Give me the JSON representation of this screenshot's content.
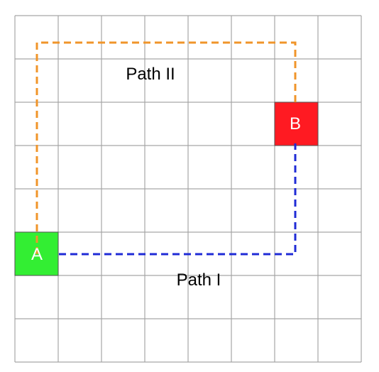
{
  "grid": {
    "cols": 8,
    "rows": 8,
    "line_color": "#a6a6a6"
  },
  "cells": {
    "a": {
      "label": "A",
      "color": "#33ee33",
      "col": 0,
      "row": 5
    },
    "b": {
      "label": "B",
      "color": "#ff1a22",
      "col": 6,
      "row": 2
    }
  },
  "paths": {
    "path_1": {
      "label": "Path I",
      "color": "#1f2bd6"
    },
    "path_2": {
      "label": "Path II",
      "color": "#f0952a"
    }
  }
}
